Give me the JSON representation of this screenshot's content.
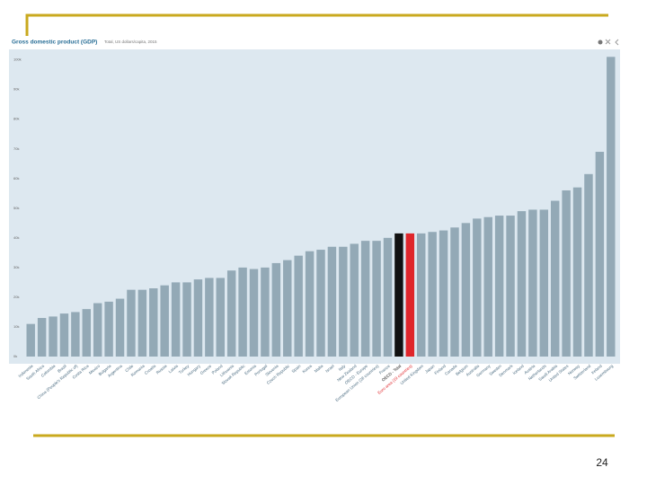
{
  "chart_data": {
    "type": "bar",
    "title": "Gross domestic product (GDP)",
    "subtitle": "Total, US dollars/capita, 2015",
    "page_number": "24",
    "categories": [
      "Indonesia",
      "South Africa",
      "Colombia",
      "Brazil",
      "China (People's Republic of)",
      "Costa Rica",
      "Mexico",
      "Bulgaria",
      "Argentina",
      "Chile",
      "Romania",
      "Croatia",
      "Russia",
      "Latvia",
      "Turkey",
      "Hungary",
      "Greece",
      "Poland",
      "Lithuania",
      "Slovak Republic",
      "Estonia",
      "Portugal",
      "Slovenia",
      "Czech Republic",
      "Spain",
      "Korea",
      "Malta",
      "Israel",
      "Italy",
      "New Zealand",
      "OECD - Europe",
      "European Union (28 countries)",
      "France",
      "OECD - Total",
      "Euro area (19 countries)",
      "United Kingdom",
      "Japan",
      "Finland",
      "Canada",
      "Belgium",
      "Australia",
      "Germany",
      "Sweden",
      "Denmark",
      "Iceland",
      "Austria",
      "Netherlands",
      "Saudi Arabia",
      "United States",
      "Norway",
      "Switzerland",
      "Ireland",
      "Luxembourg"
    ],
    "values": [
      11,
      13,
      13.5,
      14.5,
      15,
      16,
      18,
      18.5,
      19.5,
      22.5,
      22.5,
      23,
      24,
      25,
      25,
      26,
      26.5,
      26.5,
      29,
      30,
      29.5,
      30,
      31.5,
      32.5,
      34,
      35.5,
      36,
      37,
      37,
      38,
      39,
      39,
      40,
      41.5,
      41.5,
      41.5,
      42,
      42.5,
      43.5,
      45,
      46.5,
      47,
      47.5,
      47.5,
      49,
      49.5,
      49.5,
      52.5,
      56,
      57,
      61.5,
      69,
      101
    ],
    "color": "#93a9b6",
    "highlights": [
      {
        "category": "OECD - Total",
        "color": "#111111"
      },
      {
        "category": "Euro area (19 countries)",
        "color": "#e0262b"
      }
    ],
    "ylim": [
      0,
      102
    ],
    "yticks": [
      {
        "value": 0,
        "label": "0k"
      },
      {
        "value": 10,
        "label": "10k"
      },
      {
        "value": 20,
        "label": "20k"
      },
      {
        "value": 30,
        "label": "30k"
      },
      {
        "value": 40,
        "label": "40k"
      },
      {
        "value": 50,
        "label": "50k"
      },
      {
        "value": 60,
        "label": "60k"
      },
      {
        "value": 70,
        "label": "70k"
      },
      {
        "value": 80,
        "label": "80k"
      },
      {
        "value": 90,
        "label": "90k"
      },
      {
        "value": 100,
        "label": "100k"
      }
    ],
    "grid": false
  }
}
